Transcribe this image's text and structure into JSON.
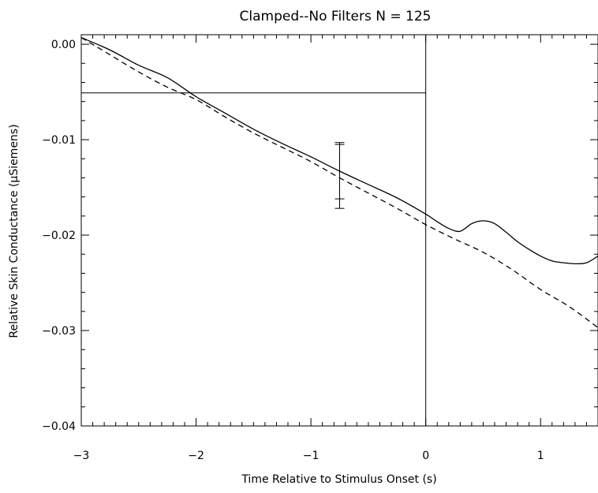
{
  "chart_data": {
    "type": "line",
    "title": "Clamped--No Filters  N = 125",
    "xlabel": "Time Relative to Stimulus Onset (s)",
    "ylabel": "Relative Skin Conductance (μSiemens)",
    "xlim": [
      -3,
      1.5
    ],
    "ylim": [
      -0.04,
      0.001
    ],
    "x_ticks": [
      -3,
      -2,
      -1,
      0,
      1
    ],
    "x_tick_labels": [
      "−3",
      "−2",
      "−1",
      "0",
      "1"
    ],
    "y_ticks": [
      0,
      -0.01,
      -0.02,
      -0.03,
      -0.04
    ],
    "y_tick_labels": [
      "0.00",
      "−0.01",
      "−0.02",
      "−0.03",
      "−0.04"
    ],
    "grid": false,
    "series": [
      {
        "style": "solid",
        "x": [
          -3.0,
          -2.75,
          -2.5,
          -2.25,
          -2.0,
          -1.75,
          -1.5,
          -1.25,
          -1.0,
          -0.75,
          -0.5,
          -0.25,
          0.0,
          0.1,
          0.2,
          0.3,
          0.4,
          0.5,
          0.6,
          0.7,
          0.8,
          0.9,
          1.0,
          1.1,
          1.2,
          1.3,
          1.4,
          1.5
        ],
        "y": [
          0.0007,
          -0.0006,
          -0.0022,
          -0.0035,
          -0.0055,
          -0.0072,
          -0.0089,
          -0.0104,
          -0.0118,
          -0.0133,
          -0.0147,
          -0.0161,
          -0.0178,
          -0.0186,
          -0.0193,
          -0.0196,
          -0.0188,
          -0.0185,
          -0.0188,
          -0.0197,
          -0.0207,
          -0.0215,
          -0.0222,
          -0.0227,
          -0.0229,
          -0.023,
          -0.0229,
          -0.0222
        ]
      },
      {
        "style": "dashed",
        "x": [
          -3.0,
          -2.75,
          -2.5,
          -2.25,
          -2.0,
          -1.75,
          -1.5,
          -1.25,
          -1.0,
          -0.75,
          -0.5,
          -0.25,
          0.0,
          0.25,
          0.5,
          0.75,
          1.0,
          1.25,
          1.5
        ],
        "y": [
          0.0007,
          -0.0011,
          -0.0029,
          -0.0045,
          -0.0058,
          -0.0076,
          -0.0093,
          -0.0108,
          -0.0123,
          -0.014,
          -0.0156,
          -0.0172,
          -0.0189,
          -0.0204,
          -0.0218,
          -0.0236,
          -0.0257,
          -0.0275,
          -0.0297
        ]
      }
    ],
    "error_bars": [
      {
        "x": -0.75,
        "ymin": -0.0172,
        "ymax": -0.0103,
        "inner_ymin": -0.0162,
        "inner_ymax": -0.0105
      }
    ],
    "reference_lines": {
      "vertical_x": 0,
      "horizontal_y": -0.0051,
      "horizontal_x_range": [
        -3,
        0
      ]
    }
  }
}
